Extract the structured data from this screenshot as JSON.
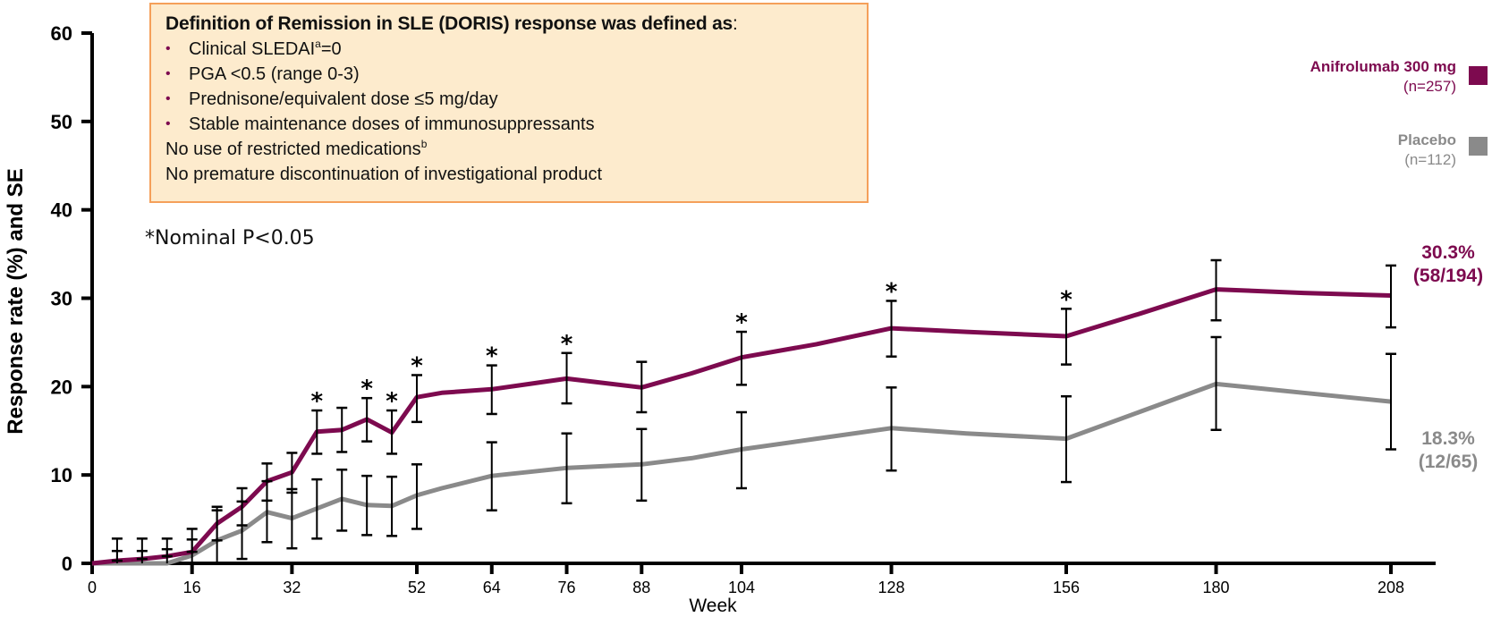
{
  "definition_box": {
    "title": "Definition of Remission in SLE (DORIS) response was defined as",
    "title_colon": ":",
    "bullets": [
      {
        "text": "Clinical SLEDAI",
        "sup": "a",
        "after": "=0"
      },
      {
        "text": "PGA <0.5 (range 0-3)",
        "sup": "",
        "after": ""
      },
      {
        "text": "Prednisone/equivalent dose ≤5 mg/day",
        "sup": "",
        "after": ""
      },
      {
        "text": "Stable maintenance doses of immunosuppressants",
        "sup": "",
        "after": ""
      }
    ],
    "plain_lines": [
      {
        "text": "No use of restricted medications",
        "sup": "b"
      },
      {
        "text": "No premature discontinuation of investigational product",
        "sup": ""
      }
    ],
    "bullet_glyph": "•"
  },
  "footnote": "*Nominal P<0.05",
  "colors": {
    "anifrolumab": "#7d0a4f",
    "placebo": "#8a8a8a",
    "box_fill": "#fdebcd",
    "box_border": "#f5a05a",
    "error_bar": "#000000"
  },
  "chart_data": {
    "type": "line",
    "title": "",
    "xlabel": "Week",
    "ylabel": "Response rate (%) and SE",
    "xlim": [
      0,
      208
    ],
    "ylim": [
      0,
      60
    ],
    "x_ticks": [
      0,
      16,
      32,
      52,
      64,
      76,
      88,
      104,
      128,
      156,
      180,
      208
    ],
    "y_ticks": [
      0,
      10,
      20,
      30,
      40,
      50,
      60
    ],
    "grid": false,
    "legend_position": "top-right",
    "significance_marker": "*",
    "series": [
      {
        "name": "Anifrolumab 300 mg",
        "n_label": "(n=257)",
        "color_key": "anifrolumab",
        "end_label": "30.3%",
        "end_fraction": "(58/194)",
        "points": [
          {
            "x": 0,
            "y": 0
          },
          {
            "x": 4,
            "y": 0.3,
            "se_low": 0.3,
            "se_high": 2.8
          },
          {
            "x": 8,
            "y": 0.5,
            "se_low": 0.5,
            "se_high": 2.8
          },
          {
            "x": 12,
            "y": 0.8,
            "se_low": 0.8,
            "se_high": 2.8
          },
          {
            "x": 16,
            "y": 1.3,
            "se_low": 1.3,
            "se_high": 3.9
          },
          {
            "x": 20,
            "y": 4.5,
            "se_low": 2.6,
            "se_high": 6.4
          },
          {
            "x": 24,
            "y": 6.4,
            "se_low": 4.3,
            "se_high": 8.5
          },
          {
            "x": 28,
            "y": 9.3,
            "se_low": 7.1,
            "se_high": 11.3
          },
          {
            "x": 32,
            "y": 10.3,
            "se_low": 8.0,
            "se_high": 12.5
          },
          {
            "x": 36,
            "y": 14.9,
            "se_low": 12.4,
            "se_high": 17.3,
            "sig": true
          },
          {
            "x": 40,
            "y": 15.1,
            "se_low": 12.6,
            "se_high": 17.6
          },
          {
            "x": 44,
            "y": 16.3,
            "se_low": 13.8,
            "se_high": 18.7,
            "sig": true
          },
          {
            "x": 48,
            "y": 14.8,
            "se_low": 12.4,
            "se_high": 17.3,
            "sig": true
          },
          {
            "x": 52,
            "y": 18.8,
            "se_low": 16.0,
            "se_high": 21.3,
            "sig": true
          },
          {
            "x": 56,
            "y": 19.3
          },
          {
            "x": 64,
            "y": 19.7,
            "se_low": 16.9,
            "se_high": 22.4,
            "sig": true
          },
          {
            "x": 70,
            "y": 20.3
          },
          {
            "x": 76,
            "y": 20.9,
            "se_low": 18.1,
            "se_high": 23.8,
            "sig": true
          },
          {
            "x": 88,
            "y": 19.9,
            "se_low": 17.1,
            "se_high": 22.8
          },
          {
            "x": 96,
            "y": 21.5
          },
          {
            "x": 104,
            "y": 23.3,
            "se_low": 20.2,
            "se_high": 26.2,
            "sig": true
          },
          {
            "x": 116,
            "y": 24.8
          },
          {
            "x": 128,
            "y": 26.6,
            "se_low": 23.4,
            "se_high": 29.7,
            "sig": true
          },
          {
            "x": 140,
            "y": 26.2
          },
          {
            "x": 156,
            "y": 25.7,
            "se_low": 22.5,
            "se_high": 28.8,
            "sig": true
          },
          {
            "x": 168,
            "y": 28.3
          },
          {
            "x": 180,
            "y": 31.0,
            "se_low": 27.5,
            "se_high": 34.3
          },
          {
            "x": 194,
            "y": 30.6
          },
          {
            "x": 208,
            "y": 30.3,
            "se_low": 26.7,
            "se_high": 33.7
          }
        ]
      },
      {
        "name": "Placebo",
        "n_label": "(n=112)",
        "color_key": "placebo",
        "end_label": "18.3%",
        "end_fraction": "(12/65)",
        "points": [
          {
            "x": 0,
            "y": 0
          },
          {
            "x": 4,
            "y": 0,
            "se_low": 0,
            "se_high": 1.4
          },
          {
            "x": 8,
            "y": 0,
            "se_low": 0,
            "se_high": 1.4
          },
          {
            "x": 12,
            "y": 0,
            "se_low": 0,
            "se_high": 1.6
          },
          {
            "x": 16,
            "y": 0.9,
            "se_low": 0,
            "se_high": 2.7
          },
          {
            "x": 20,
            "y": 2.6,
            "se_low": 0,
            "se_high": 6.0
          },
          {
            "x": 24,
            "y": 3.7,
            "se_low": 0.5,
            "se_high": 7.0
          },
          {
            "x": 28,
            "y": 5.8,
            "se_low": 2.4,
            "se_high": 9.3
          },
          {
            "x": 32,
            "y": 5.1,
            "se_low": 1.7,
            "se_high": 8.4
          },
          {
            "x": 36,
            "y": 6.2,
            "se_low": 2.8,
            "se_high": 9.5
          },
          {
            "x": 40,
            "y": 7.3,
            "se_low": 3.7,
            "se_high": 10.6
          },
          {
            "x": 44,
            "y": 6.6,
            "se_low": 3.2,
            "se_high": 9.9
          },
          {
            "x": 48,
            "y": 6.5,
            "se_low": 3.1,
            "se_high": 9.8
          },
          {
            "x": 52,
            "y": 7.7,
            "se_low": 3.9,
            "se_high": 11.2
          },
          {
            "x": 56,
            "y": 8.5
          },
          {
            "x": 64,
            "y": 9.9,
            "se_low": 6.0,
            "se_high": 13.7
          },
          {
            "x": 76,
            "y": 10.8,
            "se_low": 6.8,
            "se_high": 14.7
          },
          {
            "x": 88,
            "y": 11.2,
            "se_low": 7.1,
            "se_high": 15.2
          },
          {
            "x": 96,
            "y": 11.9
          },
          {
            "x": 104,
            "y": 12.9,
            "se_low": 8.5,
            "se_high": 17.1
          },
          {
            "x": 116,
            "y": 14.1
          },
          {
            "x": 128,
            "y": 15.3,
            "se_low": 10.5,
            "se_high": 19.9
          },
          {
            "x": 140,
            "y": 14.7
          },
          {
            "x": 156,
            "y": 14.1,
            "se_low": 9.2,
            "se_high": 18.9
          },
          {
            "x": 168,
            "y": 17.2
          },
          {
            "x": 180,
            "y": 20.3,
            "se_low": 15.1,
            "se_high": 25.6
          },
          {
            "x": 194,
            "y": 19.3
          },
          {
            "x": 208,
            "y": 18.3,
            "se_low": 12.9,
            "se_high": 23.7
          }
        ]
      }
    ]
  }
}
